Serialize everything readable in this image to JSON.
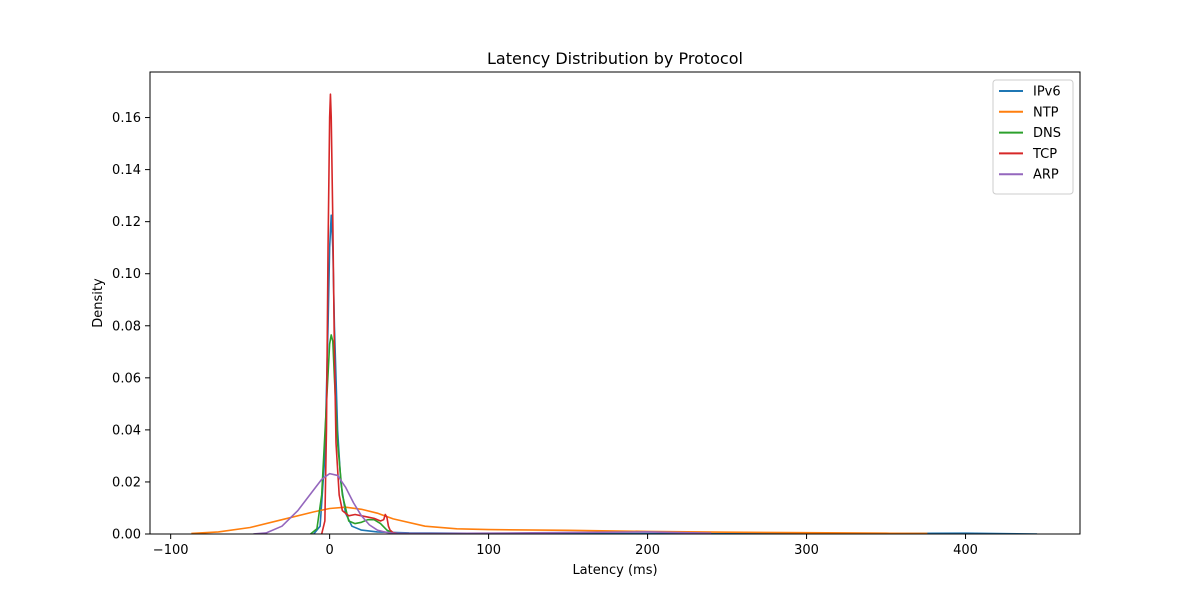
{
  "chart_data": {
    "type": "line",
    "title": "Latency Distribution by Protocol",
    "xlabel": "Latency (ms)",
    "ylabel": "Density",
    "xlim": [
      -113,
      472
    ],
    "ylim": [
      0,
      0.1775
    ],
    "xticks": [
      -100,
      0,
      100,
      200,
      300,
      400
    ],
    "yticks": [
      0.0,
      0.02,
      0.04,
      0.06,
      0.08,
      0.1,
      0.12,
      0.14,
      0.16
    ],
    "xtick_labels": [
      "−100",
      "0",
      "100",
      "200",
      "300",
      "400"
    ],
    "ytick_labels": [
      "0.00",
      "0.02",
      "0.04",
      "0.06",
      "0.08",
      "0.10",
      "0.12",
      "0.14",
      "0.16"
    ],
    "grid": false,
    "legend_position": "top-right",
    "series": [
      {
        "name": "IPv6",
        "color": "#1f77b4",
        "x": [
          -10,
          -6,
          -3,
          -1,
          0,
          1,
          2,
          3,
          5,
          7,
          10,
          14,
          20,
          30,
          50,
          100,
          200,
          300,
          400,
          445
        ],
        "y": [
          0,
          0.003,
          0.03,
          0.08,
          0.11,
          0.1225,
          0.11,
          0.08,
          0.04,
          0.02,
          0.008,
          0.003,
          0.0015,
          0.0008,
          0.0004,
          0.0002,
          0.00015,
          0.0001,
          0.0003,
          0
        ]
      },
      {
        "name": "NTP",
        "color": "#ff7f0e",
        "x": [
          -87,
          -70,
          -50,
          -30,
          -10,
          0,
          10,
          20,
          30,
          40,
          60,
          80,
          100,
          150,
          200,
          250,
          300,
          350,
          376
        ],
        "y": [
          0.0002,
          0.0008,
          0.0025,
          0.0055,
          0.0085,
          0.0098,
          0.0103,
          0.0095,
          0.008,
          0.0058,
          0.003,
          0.002,
          0.0017,
          0.0014,
          0.001,
          0.0007,
          0.0005,
          0.0003,
          0.0002
        ]
      },
      {
        "name": "DNS",
        "color": "#2ca02c",
        "x": [
          -12,
          -8,
          -5,
          -2,
          0,
          1,
          2,
          3,
          5,
          8,
          12,
          16,
          20,
          24,
          28,
          32,
          36,
          40,
          45
        ],
        "y": [
          0,
          0.002,
          0.015,
          0.05,
          0.073,
          0.0765,
          0.074,
          0.06,
          0.035,
          0.015,
          0.005,
          0.004,
          0.0045,
          0.0055,
          0.0055,
          0.004,
          0.0015,
          0.0003,
          0
        ]
      },
      {
        "name": "TCP",
        "color": "#d62728",
        "x": [
          -5,
          -3,
          -2,
          -1,
          0,
          0.5,
          1,
          2,
          3,
          4,
          6,
          8,
          12,
          16,
          20,
          24,
          28,
          32,
          34,
          35,
          36,
          37,
          38,
          40,
          45,
          50
        ],
        "y": [
          0,
          0.005,
          0.04,
          0.11,
          0.16,
          0.169,
          0.16,
          0.12,
          0.07,
          0.035,
          0.015,
          0.009,
          0.007,
          0.0075,
          0.007,
          0.0065,
          0.006,
          0.005,
          0.0055,
          0.0075,
          0.0065,
          0.003,
          0.0015,
          0.0005,
          0.0001,
          0
        ]
      },
      {
        "name": "ARP",
        "color": "#9467bd",
        "x": [
          -48,
          -40,
          -30,
          -20,
          -10,
          -5,
          0,
          5,
          10,
          15,
          20,
          25,
          30,
          35,
          40,
          50,
          70,
          100,
          150,
          200,
          240
        ],
        "y": [
          0,
          0.0004,
          0.003,
          0.009,
          0.017,
          0.021,
          0.0232,
          0.0225,
          0.018,
          0.012,
          0.007,
          0.0035,
          0.0015,
          0.0007,
          0.0003,
          0.0002,
          0.0002,
          0.0003,
          0.0006,
          0.0008,
          0.0003
        ]
      }
    ]
  }
}
